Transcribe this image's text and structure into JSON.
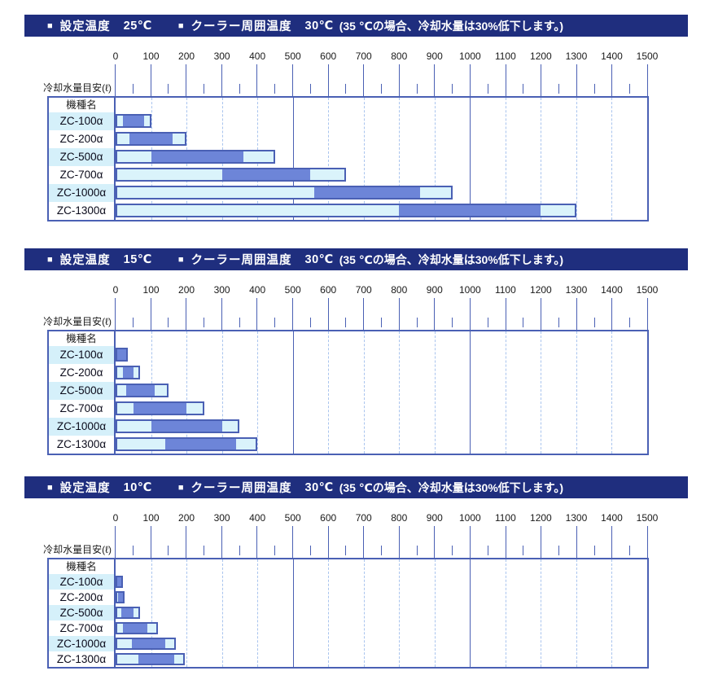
{
  "header_labels": {
    "bullet": "■",
    "set_temp_label": "設定温度",
    "ambient_label": "クーラー周囲温度"
  },
  "axis": {
    "caption": "冷却水量目安(ℓ)",
    "min": 0,
    "max": 1500,
    "major_step": 100,
    "minor_step": 50,
    "solid_gridlines": [
      500,
      1000
    ],
    "tick_labels": [
      "0",
      "100",
      "200",
      "300",
      "400",
      "500",
      "600",
      "700",
      "800",
      "900",
      "1000",
      "1100",
      "1200",
      "1300",
      "1400",
      "1500"
    ]
  },
  "table": {
    "model_header": "機種名",
    "models": [
      "ZC-100α",
      "ZC-200α",
      "ZC-500α",
      "ZC-700α",
      "ZC-1000α",
      "ZC-1300α"
    ]
  },
  "colors": {
    "header_bg": "#1f2e7e",
    "header_text": "#ffffff",
    "line_blue": "#4a60b4",
    "grid_dashed": "#a9c4ee",
    "bar_light_fill": "#daf3fb",
    "bar_dark_fill": "#6d85d8",
    "label_alt_bg": "#d5f0fa",
    "text": "#1a1a1a"
  },
  "chart_data": [
    {
      "type": "bar",
      "orientation": "horizontal",
      "title": "設定温度 25℃　クーラー周囲温度 30℃　冷却水量目安(ℓ)",
      "set_temp": "25℃",
      "ambient_temp": "30℃",
      "note": "(35 ℃の場合、冷却水量は30%低下します。)",
      "xlabel": "冷却水量目安(ℓ)",
      "xlim": [
        0,
        1500
      ],
      "grid": true,
      "categories": [
        "ZC-100α",
        "ZC-200α",
        "ZC-500α",
        "ZC-700α",
        "ZC-1000α",
        "ZC-1300α"
      ],
      "bars": [
        {
          "model": "ZC-100α",
          "capacity_range_l": [
            0,
            100
          ],
          "recommended_range_l": [
            20,
            80
          ]
        },
        {
          "model": "ZC-200α",
          "capacity_range_l": [
            0,
            200
          ],
          "recommended_range_l": [
            40,
            160
          ]
        },
        {
          "model": "ZC-500α",
          "capacity_range_l": [
            0,
            450
          ],
          "recommended_range_l": [
            100,
            360
          ]
        },
        {
          "model": "ZC-700α",
          "capacity_range_l": [
            0,
            650
          ],
          "recommended_range_l": [
            300,
            550
          ]
        },
        {
          "model": "ZC-1000α",
          "capacity_range_l": [
            0,
            950
          ],
          "recommended_range_l": [
            560,
            860
          ]
        },
        {
          "model": "ZC-1300α",
          "capacity_range_l": [
            0,
            1300
          ],
          "recommended_range_l": [
            800,
            1200
          ]
        }
      ]
    },
    {
      "type": "bar",
      "orientation": "horizontal",
      "title": "設定温度 15℃　クーラー周囲温度 30℃　冷却水量目安(ℓ)",
      "set_temp": "15℃",
      "ambient_temp": "30℃",
      "note": "(35 ℃の場合、冷却水量は30%低下します。)",
      "xlabel": "冷却水量目安(ℓ)",
      "xlim": [
        0,
        1500
      ],
      "grid": true,
      "categories": [
        "ZC-100α",
        "ZC-200α",
        "ZC-500α",
        "ZC-700α",
        "ZC-1000α",
        "ZC-1300α"
      ],
      "bars": [
        {
          "model": "ZC-100α",
          "capacity_range_l": [
            0,
            35
          ],
          "recommended_range_l": [
            5,
            30
          ]
        },
        {
          "model": "ZC-200α",
          "capacity_range_l": [
            0,
            70
          ],
          "recommended_range_l": [
            20,
            50
          ]
        },
        {
          "model": "ZC-500α",
          "capacity_range_l": [
            0,
            150
          ],
          "recommended_range_l": [
            30,
            110
          ]
        },
        {
          "model": "ZC-700α",
          "capacity_range_l": [
            0,
            250
          ],
          "recommended_range_l": [
            50,
            200
          ]
        },
        {
          "model": "ZC-1000α",
          "capacity_range_l": [
            0,
            350
          ],
          "recommended_range_l": [
            100,
            300
          ]
        },
        {
          "model": "ZC-1300α",
          "capacity_range_l": [
            0,
            400
          ],
          "recommended_range_l": [
            140,
            340
          ]
        }
      ]
    },
    {
      "type": "bar",
      "orientation": "horizontal",
      "title": "設定温度 10℃　クーラー周囲温度 30℃　冷却水量目安(ℓ)",
      "set_temp": "10℃",
      "ambient_temp": "30℃",
      "note": "(35 ℃の場合、冷却水量は30%低下します。)",
      "xlabel": "冷却水量目安(ℓ)",
      "xlim": [
        0,
        1500
      ],
      "grid": true,
      "categories": [
        "ZC-100α",
        "ZC-200α",
        "ZC-500α",
        "ZC-700α",
        "ZC-1000α",
        "ZC-1300α"
      ],
      "bars": [
        {
          "model": "ZC-100α",
          "capacity_range_l": [
            0,
            20
          ],
          "recommended_range_l": [
            5,
            15
          ]
        },
        {
          "model": "ZC-200α",
          "capacity_range_l": [
            0,
            25
          ],
          "recommended_range_l": [
            8,
            20
          ]
        },
        {
          "model": "ZC-500α",
          "capacity_range_l": [
            0,
            70
          ],
          "recommended_range_l": [
            15,
            50
          ]
        },
        {
          "model": "ZC-700α",
          "capacity_range_l": [
            0,
            120
          ],
          "recommended_range_l": [
            20,
            90
          ]
        },
        {
          "model": "ZC-1000α",
          "capacity_range_l": [
            0,
            170
          ],
          "recommended_range_l": [
            45,
            140
          ]
        },
        {
          "model": "ZC-1300α",
          "capacity_range_l": [
            0,
            195
          ],
          "recommended_range_l": [
            65,
            165
          ]
        }
      ]
    }
  ]
}
